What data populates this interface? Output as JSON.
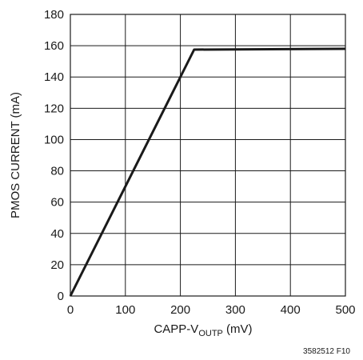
{
  "chart_data": {
    "type": "line",
    "title": "",
    "xlabel": {
      "main": "CAPP-V",
      "subscript": "OUTP",
      "suffix": " (mV)"
    },
    "ylabel": "PMOS CURRENT (mA)",
    "xlim": [
      0,
      500
    ],
    "ylim": [
      0,
      180
    ],
    "xticks": [
      0,
      100,
      200,
      300,
      400,
      500
    ],
    "yticks": [
      0,
      20,
      40,
      60,
      80,
      100,
      120,
      140,
      160,
      180
    ],
    "grid": true,
    "series": [
      {
        "x": [
          0,
          225,
          500
        ],
        "y": [
          0,
          157.5,
          158
        ]
      }
    ],
    "figure_code": "3582512 F10"
  }
}
